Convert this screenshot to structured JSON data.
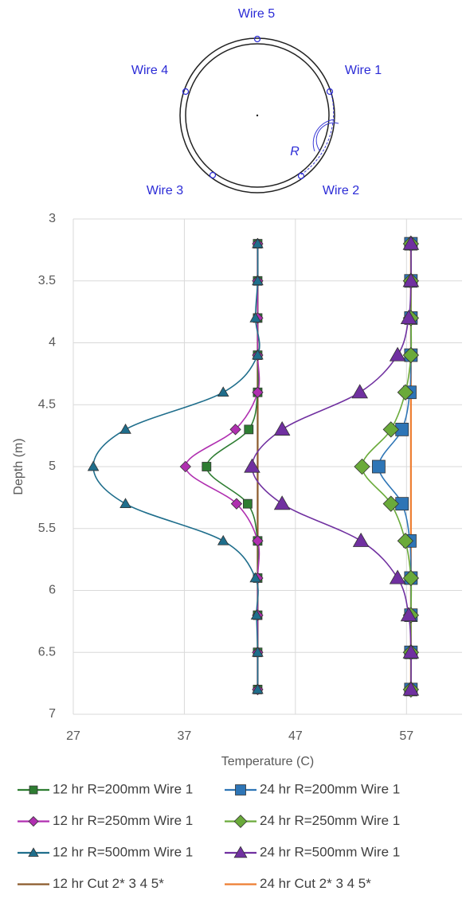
{
  "diagram": {
    "labels": [
      "Wire 5",
      "Wire 4",
      "Wire 1",
      "Wire 3",
      "Wire 2",
      "R"
    ]
  },
  "chart_data": {
    "type": "line",
    "y_label": "Depth (m)",
    "x_label": "Temperature (C)",
    "depths": [
      3.2,
      3.5,
      3.8,
      4.1,
      4.4,
      4.7,
      5.0,
      5.3,
      5.6,
      5.9,
      6.2,
      6.5,
      6.8
    ],
    "xlim": [
      27,
      62
    ],
    "xticks": [
      27,
      37,
      47,
      57
    ],
    "ylim": [
      7,
      3
    ],
    "yticks": [
      3,
      3.5,
      4,
      4.5,
      5,
      5.5,
      6,
      6.5,
      7
    ],
    "grid": true,
    "series": [
      {
        "name": "12 hr R=200mm Wire 1",
        "color": "#2e7d32",
        "marker": "square",
        "values": [
          43.6,
          43.6,
          43.6,
          43.6,
          43.6,
          42.8,
          39.0,
          42.7,
          43.6,
          43.6,
          43.6,
          43.6,
          43.6
        ]
      },
      {
        "name": "24 hr R=200mm Wire 1",
        "color": "#2e75b6",
        "marker": "square",
        "values": [
          57.4,
          57.4,
          57.4,
          57.4,
          57.3,
          56.6,
          54.5,
          56.6,
          57.3,
          57.4,
          57.4,
          57.4,
          57.4
        ]
      },
      {
        "name": "12 hr R=250mm Wire 1",
        "color": "#b02fb0",
        "marker": "diamond",
        "values": [
          43.6,
          43.6,
          43.6,
          43.6,
          43.6,
          41.6,
          37.1,
          41.7,
          43.6,
          43.6,
          43.6,
          43.6,
          43.6
        ]
      },
      {
        "name": "24 hr R=250mm Wire 1",
        "color": "#6aaa3a",
        "marker": "diamond",
        "values": [
          57.4,
          57.4,
          57.4,
          57.4,
          56.9,
          55.6,
          53.0,
          55.6,
          56.9,
          57.4,
          57.4,
          57.4,
          57.4
        ]
      },
      {
        "name": "12 hr R=500mm Wire 1",
        "color": "#1f6e8c",
        "marker": "triangle",
        "values": [
          43.6,
          43.6,
          43.4,
          43.6,
          40.5,
          31.7,
          28.8,
          31.7,
          40.5,
          43.4,
          43.5,
          43.6,
          43.6
        ]
      },
      {
        "name": "24 hr R=500mm Wire 1",
        "color": "#7030a0",
        "marker": "triangle",
        "values": [
          57.4,
          57.4,
          57.2,
          56.2,
          52.8,
          45.8,
          43.1,
          45.8,
          52.9,
          56.2,
          57.2,
          57.4,
          57.4
        ]
      },
      {
        "name": "12 hr Cut 2* 3 4 5*",
        "color": "#8b5a2b",
        "marker": "none",
        "values": [
          43.6,
          43.6,
          43.6,
          43.6,
          43.6,
          43.6,
          43.6,
          43.6,
          43.6,
          43.6,
          43.6,
          43.6,
          43.6
        ]
      },
      {
        "name": "24 hr Cut 2* 3 4 5*",
        "color": "#ed7d31",
        "marker": "none",
        "values": [
          57.4,
          57.4,
          57.4,
          57.4,
          57.4,
          57.4,
          57.4,
          57.4,
          57.4,
          57.4,
          57.4,
          57.4,
          57.4
        ]
      }
    ]
  }
}
